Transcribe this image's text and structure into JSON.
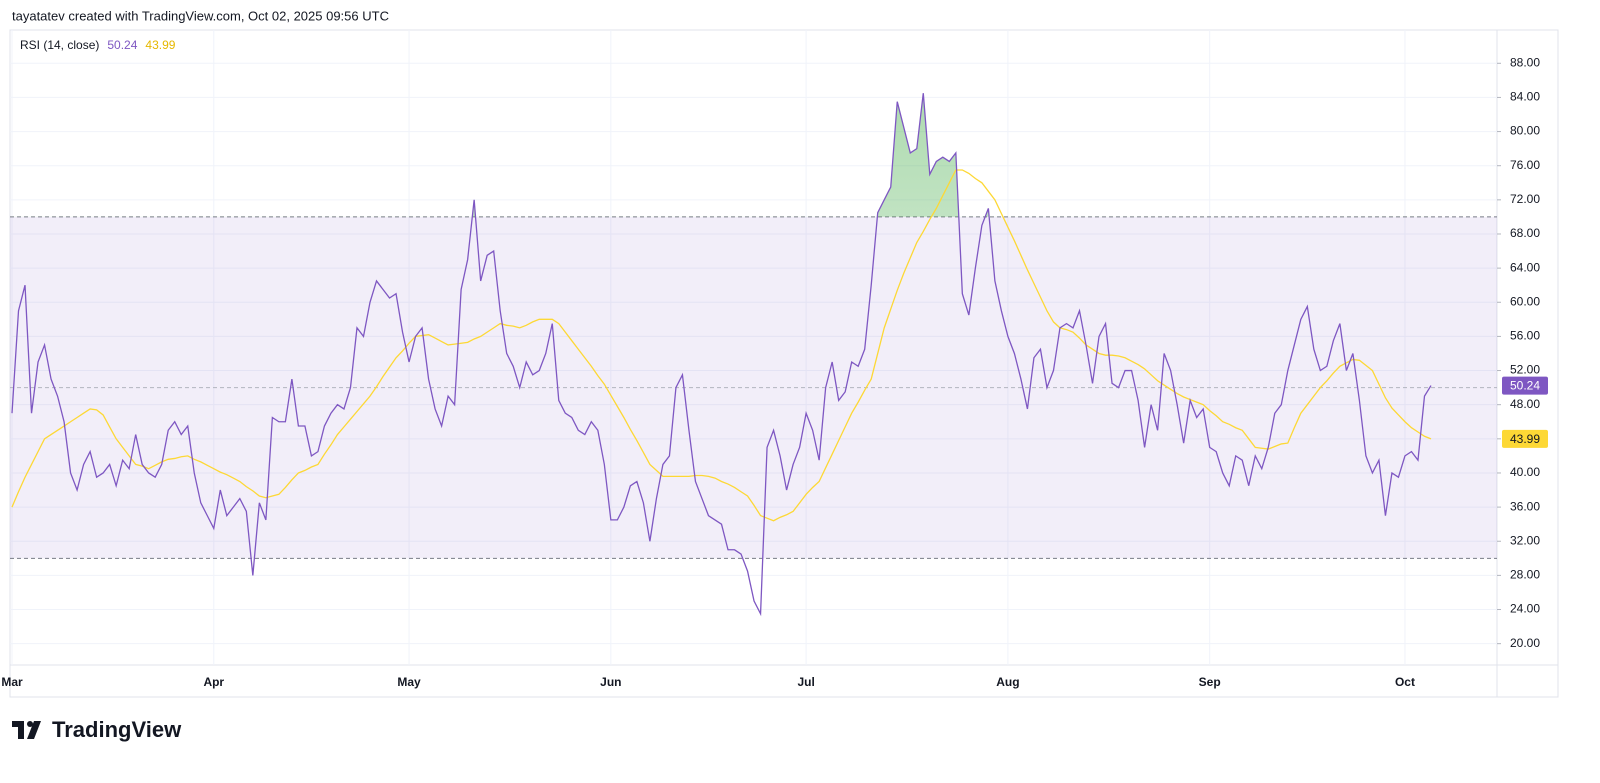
{
  "header": {
    "credit": "tayatatev created with TradingView.com, Oct 02, 2025 09:56 UTC"
  },
  "footer": {
    "brand": "TradingView"
  },
  "chart_data": {
    "type": "line",
    "title": "RSI (14, close)",
    "categories": [
      "Mar",
      null,
      null,
      null,
      null,
      null,
      null,
      null,
      null,
      null,
      null,
      null,
      null,
      null,
      null,
      null,
      null,
      null,
      null,
      null,
      null,
      null,
      null,
      null,
      null,
      null,
      null,
      null,
      null,
      null,
      null,
      "Apr",
      null,
      null,
      null,
      null,
      null,
      null,
      null,
      null,
      null,
      null,
      null,
      null,
      null,
      null,
      null,
      null,
      null,
      null,
      null,
      null,
      null,
      null,
      null,
      null,
      null,
      null,
      null,
      null,
      null,
      "May",
      null,
      null,
      null,
      null,
      null,
      null,
      null,
      null,
      null,
      null,
      null,
      null,
      null,
      null,
      null,
      null,
      null,
      null,
      null,
      null,
      null,
      null,
      null,
      null,
      null,
      null,
      null,
      null,
      null,
      null,
      "Jun",
      null,
      null,
      null,
      null,
      null,
      null,
      null,
      null,
      null,
      null,
      null,
      null,
      null,
      null,
      null,
      null,
      null,
      null,
      null,
      null,
      null,
      null,
      null,
      null,
      null,
      null,
      null,
      null,
      null,
      "Jul",
      null,
      null,
      null,
      null,
      null,
      null,
      null,
      null,
      null,
      null,
      null,
      null,
      null,
      null,
      null,
      null,
      null,
      null,
      null,
      null,
      null,
      null,
      null,
      null,
      null,
      null,
      null,
      null,
      null,
      null,
      "Aug",
      null,
      null,
      null,
      null,
      null,
      null,
      null,
      null,
      null,
      null,
      null,
      null,
      null,
      null,
      null,
      null,
      null,
      null,
      null,
      null,
      null,
      null,
      null,
      null,
      null,
      null,
      null,
      null,
      null,
      null,
      "Sep",
      null,
      null,
      null,
      null,
      null,
      null,
      null,
      null,
      null,
      null,
      null,
      null,
      null,
      null,
      null,
      null,
      null,
      null,
      null,
      null,
      null,
      null,
      null,
      null,
      null,
      null,
      null,
      null,
      null,
      "Oct",
      null,
      null,
      null,
      null
    ],
    "series": [
      {
        "color": "#7e57c2",
        "values": [
          47,
          59,
          62,
          47,
          53,
          55,
          51,
          49,
          46,
          40,
          38,
          41,
          42.5,
          39.5,
          40,
          41,
          38.5,
          41.5,
          40.5,
          44.5,
          41,
          40,
          39.5,
          41,
          45,
          46,
          44.5,
          45.5,
          40,
          36.5,
          35,
          33.5,
          38,
          35,
          36,
          37,
          35.5,
          28,
          36.5,
          34.5,
          46.5,
          46,
          46,
          51,
          45.5,
          45.5,
          42,
          42.5,
          45.5,
          47,
          48,
          47.5,
          50,
          57,
          56,
          60,
          62.5,
          61.5,
          60.5,
          61,
          56.5,
          53,
          56,
          57,
          51,
          47.5,
          45.5,
          49,
          48,
          61.5,
          65,
          72,
          62.5,
          65.5,
          66,
          59,
          54,
          52.5,
          50,
          53,
          51.5,
          52,
          54,
          57.5,
          48.5,
          47,
          46.5,
          45,
          44.5,
          46,
          45,
          41,
          34.5,
          34.5,
          36,
          38.5,
          39,
          36.5,
          32,
          37,
          41,
          42,
          50,
          51.5,
          45,
          39,
          37,
          35,
          34.5,
          34,
          31,
          31,
          30.5,
          28.5,
          25,
          23.5,
          43,
          45,
          42,
          38,
          41,
          43,
          47,
          45,
          41.5,
          50,
          53,
          48.5,
          49.5,
          53,
          52.5,
          54.5,
          62,
          70.5,
          72,
          73.5,
          83.5,
          80.5,
          77.5,
          78,
          84.5,
          75,
          76.5,
          77,
          76.5,
          77.5,
          61,
          58.5,
          64,
          69,
          71,
          62.5,
          59,
          56,
          54,
          51,
          47.5,
          53.5,
          54.5,
          50,
          52,
          57,
          57.5,
          57,
          59,
          55,
          50.5,
          56,
          57.5,
          50.5,
          50,
          52,
          52,
          48.5,
          43,
          48,
          45,
          54,
          52,
          48,
          43.5,
          48.5,
          46.5,
          47.5,
          43,
          42.5,
          40,
          38.5,
          42,
          41.5,
          38.5,
          42,
          40.5,
          43,
          47,
          48,
          52,
          55,
          58,
          59.5,
          54.5,
          52,
          52.5,
          55.5,
          57.5,
          52,
          54,
          48.5,
          42,
          40,
          41.5,
          35,
          40,
          39.5,
          42,
          42.5,
          41.5,
          49,
          50.24
        ]
      },
      {
        "color": "#fdd835",
        "values": [
          36,
          37.8,
          39.5,
          41,
          42.5,
          44,
          44.5,
          45,
          45.5,
          46,
          46.5,
          47,
          47.5,
          47.4,
          46.8,
          45.4,
          44,
          43,
          42,
          41,
          40.8,
          40.5,
          40.9,
          41.3,
          41.6,
          41.7,
          41.9,
          42,
          41.6,
          41.3,
          40.9,
          40.5,
          40.1,
          39.8,
          39.4,
          39,
          38.4,
          37.9,
          37.3,
          37.1,
          37.3,
          37.5,
          38.3,
          39.2,
          40,
          40.3,
          40.7,
          41,
          42.2,
          43.3,
          44.5,
          45.4,
          46.3,
          47.2,
          48.1,
          49,
          50.1,
          51.3,
          52.4,
          53.5,
          54.3,
          55.2,
          56,
          56.1,
          56.2,
          55.8,
          55.4,
          55,
          55.1,
          55.2,
          55.3,
          55.7,
          56,
          56.5,
          57,
          57.5,
          57.3,
          57.2,
          57,
          57.3,
          57.7,
          58,
          58,
          58,
          57.5,
          56.5,
          55.5,
          54.5,
          53.5,
          52.5,
          51.4,
          50.4,
          49.1,
          47.8,
          46.5,
          45.1,
          43.8,
          42.4,
          41,
          40.3,
          39.6,
          39.6,
          39.6,
          39.6,
          39.6,
          39.7,
          39.7,
          39.6,
          39.4,
          39,
          38.7,
          38.3,
          37.8,
          37.3,
          36.2,
          35,
          34.7,
          34.4,
          34.8,
          35.1,
          35.5,
          36.5,
          37.5,
          38.3,
          39,
          40.6,
          42.2,
          43.8,
          45.4,
          47,
          48.3,
          49.7,
          51,
          54,
          57,
          59.2,
          61.4,
          63.4,
          65.2,
          67,
          68.3,
          69.7,
          71,
          72.5,
          74,
          75.5,
          75.5,
          75.1,
          74.5,
          74,
          73,
          72,
          70.4,
          68.8,
          67.2,
          65.5,
          63.8,
          62.2,
          60.6,
          59,
          57.7,
          57,
          56.8,
          56.5,
          55.8,
          55,
          54.5,
          54,
          53.8,
          53.8,
          53.7,
          53.5,
          53.1,
          52.7,
          52.2,
          51.5,
          50.8,
          50.3,
          49.8,
          49.3,
          48.9,
          48.6,
          48.3,
          48,
          47.3,
          46.7,
          46,
          45.7,
          45.3,
          45,
          44,
          43,
          42.9,
          42.8,
          43.1,
          43.4,
          43.5,
          45.3,
          47,
          48,
          49,
          50,
          50.8,
          51.7,
          52.5,
          52.9,
          53.3,
          53.2,
          52.6,
          52,
          50.4,
          48.8,
          47.6,
          46.8,
          46,
          45.3,
          44.8,
          44.3,
          43.99
        ]
      }
    ],
    "ylim": [
      17.5,
      91.9
    ],
    "yticks": [
      {
        "value": 20,
        "label": "20.00"
      },
      {
        "value": 24,
        "label": "24.00"
      },
      {
        "value": 28,
        "label": "28.00"
      },
      {
        "value": 32,
        "label": "32.00"
      },
      {
        "value": 36,
        "label": "36.00"
      },
      {
        "value": 40,
        "label": "40.00"
      },
      {
        "value": 44,
        "label": "44.00"
      },
      {
        "value": 48,
        "label": "48.00"
      },
      {
        "value": 52,
        "label": "52.00"
      },
      {
        "value": 56,
        "label": "56.00"
      },
      {
        "value": 60,
        "label": "60.00"
      },
      {
        "value": 64,
        "label": "64.00"
      },
      {
        "value": 68,
        "label": "68.00"
      },
      {
        "value": 72,
        "label": "72.00"
      },
      {
        "value": 76,
        "label": "76.00"
      },
      {
        "value": 80,
        "label": "80.00"
      },
      {
        "value": 84,
        "label": "84.00"
      },
      {
        "value": 88,
        "label": "88.00"
      }
    ],
    "grid": true,
    "levels": {
      "upper": 70,
      "middle": 50,
      "lower": 30
    },
    "band_color": "#7e57c2",
    "overbought_color": "#4caf50"
  }
}
